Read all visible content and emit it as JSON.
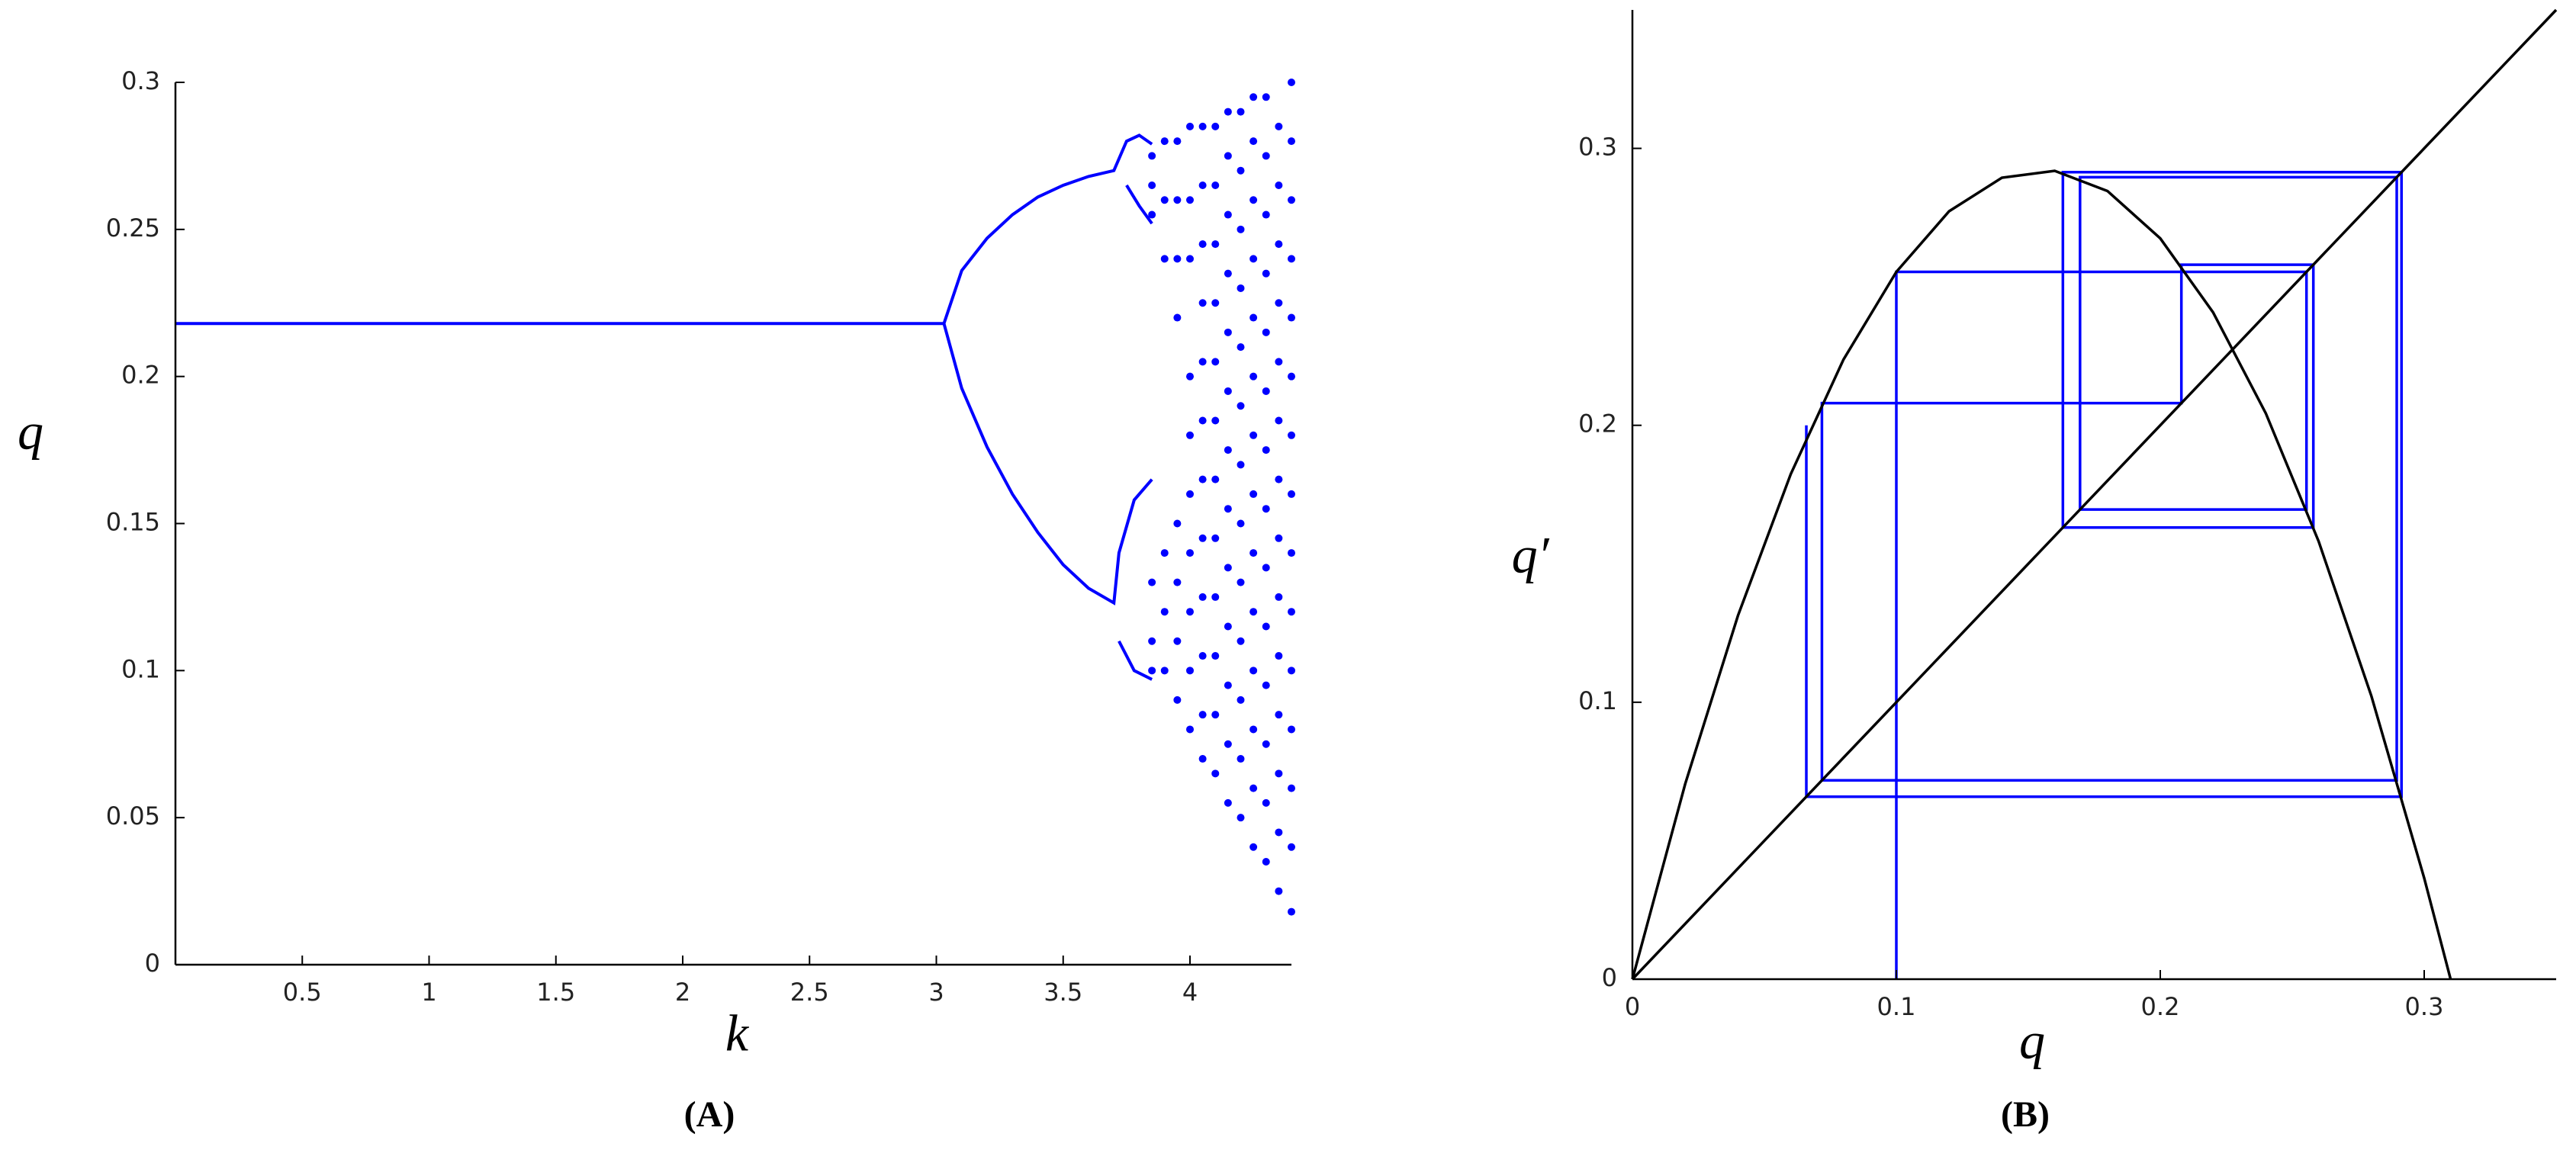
{
  "chart_data": [
    {
      "type": "scatter",
      "x_label": "k",
      "y_label": "q",
      "panel_label": "(A)",
      "xlim": [
        0,
        4.4
      ],
      "ylim": [
        0,
        0.3
      ],
      "xticks": [
        0.5,
        1,
        1.5,
        2,
        2.5,
        3,
        3.5,
        4
      ],
      "yticks": [
        0,
        0.05,
        0.1,
        0.15,
        0.2,
        0.25,
        0.3
      ],
      "series": [
        {
          "type": "line",
          "color": "#0000ff",
          "x": [
            0,
            3.03
          ],
          "values": [
            0.218,
            0.218
          ]
        },
        {
          "type": "line",
          "color": "#0000ff",
          "x": [
            3.03,
            3.1,
            3.2,
            3.3,
            3.4,
            3.5,
            3.6,
            3.7,
            3.75,
            3.8,
            3.85
          ],
          "values": [
            0.218,
            0.236,
            0.247,
            0.255,
            0.261,
            0.265,
            0.268,
            0.27,
            0.28,
            0.282,
            0.279
          ]
        },
        {
          "type": "line",
          "color": "#0000ff",
          "x": [
            3.75,
            3.8,
            3.85
          ],
          "values": [
            0.265,
            0.258,
            0.252
          ]
        },
        {
          "type": "line",
          "color": "#0000ff",
          "x": [
            3.03,
            3.1,
            3.2,
            3.3,
            3.4,
            3.5,
            3.6,
            3.7,
            3.72,
            3.78,
            3.85
          ],
          "values": [
            0.218,
            0.196,
            0.176,
            0.16,
            0.147,
            0.136,
            0.128,
            0.123,
            0.14,
            0.158,
            0.165
          ]
        },
        {
          "type": "line",
          "color": "#0000ff",
          "x": [
            3.72,
            3.78,
            3.85
          ],
          "values": [
            0.11,
            0.1,
            0.097
          ]
        },
        {
          "type": "scatter",
          "color": "#0000ff",
          "x": [
            3.85,
            3.85,
            3.85,
            3.85,
            3.85,
            3.85,
            3.9,
            3.9,
            3.9,
            3.9,
            3.9,
            3.9,
            3.95,
            3.95,
            3.95,
            3.95,
            3.95,
            3.95,
            3.95,
            3.95,
            4,
            4,
            4,
            4,
            4,
            4,
            4,
            4,
            4,
            4,
            4.05,
            4.05,
            4.05,
            4.05,
            4.05,
            4.05,
            4.05,
            4.05,
            4.05,
            4.05,
            4.05,
            4.05,
            4.1,
            4.1,
            4.1,
            4.1,
            4.1,
            4.1,
            4.1,
            4.1,
            4.1,
            4.1,
            4.1,
            4.1,
            4.15,
            4.15,
            4.15,
            4.15,
            4.15,
            4.15,
            4.15,
            4.15,
            4.15,
            4.15,
            4.15,
            4.15,
            4.15,
            4.2,
            4.2,
            4.2,
            4.2,
            4.2,
            4.2,
            4.2,
            4.2,
            4.2,
            4.2,
            4.2,
            4.2,
            4.2,
            4.25,
            4.25,
            4.25,
            4.25,
            4.25,
            4.25,
            4.25,
            4.25,
            4.25,
            4.25,
            4.25,
            4.25,
            4.25,
            4.25,
            4.3,
            4.3,
            4.3,
            4.3,
            4.3,
            4.3,
            4.3,
            4.3,
            4.3,
            4.3,
            4.3,
            4.3,
            4.3,
            4.3,
            4.35,
            4.35,
            4.35,
            4.35,
            4.35,
            4.35,
            4.35,
            4.35,
            4.35,
            4.35,
            4.35,
            4.35,
            4.35,
            4.35,
            4.4,
            4.4,
            4.4,
            4.4,
            4.4,
            4.4,
            4.4,
            4.4,
            4.4,
            4.4,
            4.4,
            4.4,
            4.4,
            4.4,
            4.4
          ],
          "values": [
            0.275,
            0.265,
            0.255,
            0.13,
            0.11,
            0.1,
            0.28,
            0.26,
            0.24,
            0.14,
            0.12,
            0.1,
            0.28,
            0.26,
            0.24,
            0.22,
            0.15,
            0.13,
            0.11,
            0.09,
            0.285,
            0.26,
            0.24,
            0.2,
            0.18,
            0.16,
            0.14,
            0.12,
            0.1,
            0.08,
            0.285,
            0.265,
            0.245,
            0.225,
            0.205,
            0.185,
            0.165,
            0.145,
            0.125,
            0.105,
            0.085,
            0.07,
            0.065,
            0.085,
            0.105,
            0.125,
            0.145,
            0.165,
            0.185,
            0.205,
            0.225,
            0.245,
            0.265,
            0.285,
            0.055,
            0.075,
            0.095,
            0.115,
            0.135,
            0.155,
            0.175,
            0.195,
            0.215,
            0.235,
            0.255,
            0.275,
            0.29,
            0.05,
            0.07,
            0.09,
            0.11,
            0.13,
            0.15,
            0.17,
            0.19,
            0.21,
            0.23,
            0.25,
            0.27,
            0.29,
            0.04,
            0.06,
            0.08,
            0.1,
            0.12,
            0.14,
            0.16,
            0.18,
            0.2,
            0.22,
            0.24,
            0.26,
            0.28,
            0.295,
            0.035,
            0.055,
            0.075,
            0.095,
            0.115,
            0.135,
            0.155,
            0.175,
            0.195,
            0.215,
            0.235,
            0.255,
            0.275,
            0.295,
            0.025,
            0.045,
            0.065,
            0.085,
            0.105,
            0.125,
            0.145,
            0.165,
            0.185,
            0.205,
            0.225,
            0.245,
            0.265,
            0.285,
            0.018,
            0.04,
            0.06,
            0.08,
            0.1,
            0.12,
            0.14,
            0.16,
            0.18,
            0.2,
            0.22,
            0.24,
            0.26,
            0.28,
            0.3
          ]
        }
      ]
    },
    {
      "type": "line",
      "x_label": "q",
      "y_label": "q′",
      "panel_label": "(B)",
      "xlim": [
        0,
        0.35
      ],
      "ylim": [
        0,
        0.35
      ],
      "xticks": [
        0,
        0.1,
        0.2,
        0.3
      ],
      "yticks": [
        0,
        0.1,
        0.2,
        0.3
      ],
      "series": [
        {
          "color": "#0000ff",
          "x": [
            0.1,
            0.1,
            0.2554,
            0.2554,
            0.1696,
            0.1696,
            0.2896,
            0.2896,
            0.0718,
            0.0718,
            0.208,
            0.208,
            0.258,
            0.258,
            0.1631,
            0.1631,
            0.2914,
            0.2914,
            0.0659,
            0.0659
          ],
          "values": [
            0,
            0.2554,
            0.2554,
            0.1696,
            0.1696,
            0.2896,
            0.2896,
            0.0718,
            0.0718,
            0.208,
            0.208,
            0.258,
            0.258,
            0.1631,
            0.1631,
            0.2914,
            0.2914,
            0.0659,
            0.0659,
            0.2
          ]
        },
        {
          "color": "#000000",
          "x": [
            0,
            0.35
          ],
          "values": [
            0,
            0.35
          ]
        },
        {
          "color": "#000000",
          "x": [
            0,
            0.02,
            0.04,
            0.06,
            0.08,
            0.1,
            0.12,
            0.14,
            0.16,
            0.18,
            0.2,
            0.22,
            0.24,
            0.26,
            0.28,
            0.3,
            0.31
          ],
          "values": [
            0,
            0.0705,
            0.1313,
            0.1824,
            0.2238,
            0.2554,
            0.2773,
            0.2894,
            0.2919,
            0.2846,
            0.2675,
            0.2408,
            0.2043,
            0.1581,
            0.1022,
            0.0365,
            0
          ]
        }
      ]
    }
  ]
}
